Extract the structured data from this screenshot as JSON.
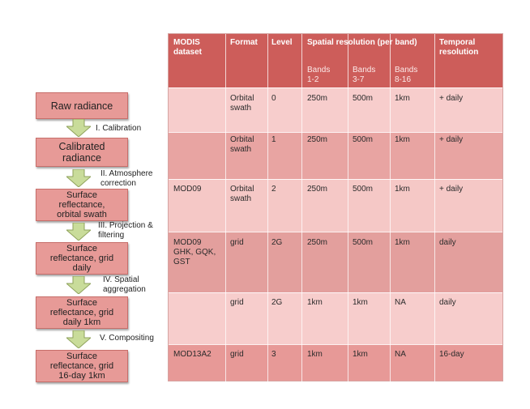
{
  "colors": {
    "header_bg": "#cd5d5a",
    "row_light": "#f7cdcc",
    "row_dark": "#e8a4a2",
    "flow_box": "#e79a97",
    "arrow": "#c9dc9a"
  },
  "flow": {
    "boxes": [
      {
        "lines": [
          "Raw radiance"
        ]
      },
      {
        "lines": [
          "Calibrated",
          "radiance"
        ]
      },
      {
        "lines": [
          "Surface",
          "reflectance,",
          "orbital swath"
        ]
      },
      {
        "lines": [
          "Surface",
          "reflectance, grid",
          "daily"
        ]
      },
      {
        "lines": [
          "Surface",
          "reflectance, grid",
          "daily 1km"
        ]
      },
      {
        "lines": [
          "Surface",
          "reflectance, grid",
          "16-day 1km"
        ]
      }
    ],
    "steps": [
      {
        "lines": [
          "I. Calibration"
        ]
      },
      {
        "lines": [
          "II. Atmosphere",
          "correction"
        ]
      },
      {
        "lines": [
          "III. Projection &",
          "filtering"
        ]
      },
      {
        "lines": [
          "IV. Spatial",
          "aggregation"
        ]
      },
      {
        "lines": [
          "V. Compositing"
        ]
      }
    ]
  },
  "table": {
    "headers": {
      "dataset": "MODIS\ndataset",
      "format": "Format",
      "level": "Level",
      "spatial": "Spatial resolution (per band)",
      "temporal": "Temporal\nresolution"
    },
    "subheaders": {
      "b12": "Bands\n1-2",
      "b37": "Bands\n3-7",
      "b816": "Bands\n8-16"
    },
    "rows": [
      {
        "dataset": "",
        "format": "Orbital\nswath",
        "level": "0",
        "b12": "250m",
        "b37": "500m",
        "b816": "1km",
        "temporal": "+ daily"
      },
      {
        "dataset": "",
        "format": "Orbital\nswath",
        "level": "1",
        "b12": "250m",
        "b37": "500m",
        "b816": "1km",
        "temporal": "+ daily"
      },
      {
        "dataset": "MOD09",
        "format": "Orbital\nswath",
        "level": "2",
        "b12": "250m",
        "b37": "500m",
        "b816": "1km",
        "temporal": "+ daily"
      },
      {
        "dataset": "MOD09\nGHK, GQK,\nGST",
        "format": "grid",
        "level": "2G",
        "b12": "250m",
        "b37": "500m",
        "b816": "1km",
        "temporal": "daily"
      },
      {
        "dataset": "",
        "format": "grid",
        "level": "2G",
        "b12": "1km",
        "b37": "1km",
        "b816": "NA",
        "temporal": "daily"
      },
      {
        "dataset": "MOD13A2",
        "format": "grid",
        "level": "3",
        "b12": "1km",
        "b37": "1km",
        "b816": "NA",
        "temporal": "16-day"
      }
    ]
  }
}
